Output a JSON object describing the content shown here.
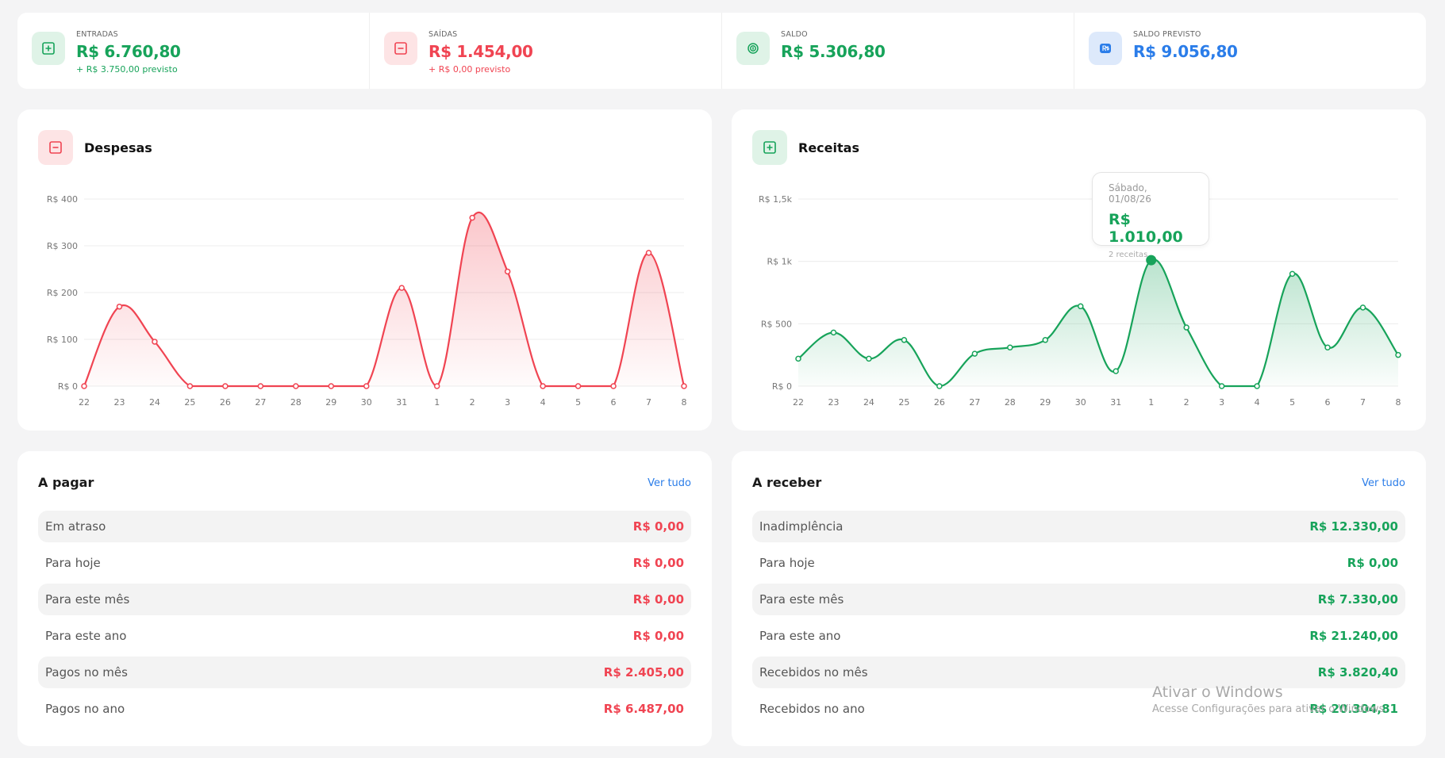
{
  "stats": [
    {
      "label": "ENTRADAS",
      "value": "R$ 6.760,80",
      "sub": "+ R$ 3.750,00 previsto",
      "icon": "plus-square-icon"
    },
    {
      "label": "SAÍDAS",
      "value": "R$ 1.454,00",
      "sub": "+ R$ 0,00 previsto",
      "icon": "minus-square-icon"
    },
    {
      "label": "SALDO",
      "value": "R$ 5.306,80",
      "sub": "",
      "icon": "coins-icon"
    },
    {
      "label": "SALDO PREVISTO",
      "value": "R$ 9.056,80",
      "sub": "",
      "icon": "currency-badge-icon"
    }
  ],
  "colors": {
    "green": "#17a35a",
    "red": "#f04452",
    "blue": "#2b7de9"
  },
  "despesas": {
    "title": "Despesas",
    "icon": "minus-square-icon"
  },
  "receitas": {
    "title": "Receitas",
    "icon": "plus-square-icon"
  },
  "tooltip": {
    "date": "Sábado, 01/08/26",
    "value": "R$ 1.010,00",
    "sub": "2 receitas"
  },
  "chart_data": [
    {
      "type": "area",
      "title": "Despesas",
      "categories": [
        "22",
        "23",
        "24",
        "25",
        "26",
        "27",
        "28",
        "29",
        "30",
        "31",
        "1",
        "2",
        "3",
        "4",
        "5",
        "6",
        "7",
        "8"
      ],
      "values": [
        0,
        170,
        95,
        0,
        0,
        0,
        0,
        0,
        0,
        210,
        0,
        360,
        245,
        0,
        0,
        0,
        285,
        0
      ],
      "yticks": [
        "R$ 0",
        "R$ 100",
        "R$ 200",
        "R$ 300",
        "R$ 400"
      ],
      "ylim": [
        0,
        400
      ],
      "color": "#f04452",
      "grid": true
    },
    {
      "type": "area",
      "title": "Receitas",
      "categories": [
        "22",
        "23",
        "24",
        "25",
        "26",
        "27",
        "28",
        "29",
        "30",
        "31",
        "1",
        "2",
        "3",
        "4",
        "5",
        "6",
        "7",
        "8"
      ],
      "values": [
        220,
        430,
        220,
        370,
        0,
        260,
        310,
        370,
        640,
        120,
        1010,
        470,
        0,
        0,
        900,
        310,
        630,
        250
      ],
      "yticks": [
        "R$ 0",
        "R$ 500",
        "R$ 1k",
        "R$ 1,5k"
      ],
      "ylim": [
        0,
        1500
      ],
      "color": "#17a35a",
      "grid": true
    }
  ],
  "pagar": {
    "title": "A pagar",
    "link": "Ver tudo",
    "rows": [
      {
        "label": "Em atraso",
        "value": "R$ 0,00"
      },
      {
        "label": "Para hoje",
        "value": "R$ 0,00"
      },
      {
        "label": "Para este mês",
        "value": "R$ 0,00"
      },
      {
        "label": "Para este ano",
        "value": "R$ 0,00"
      },
      {
        "label": "Pagos no mês",
        "value": "R$ 2.405,00"
      },
      {
        "label": "Pagos no ano",
        "value": "R$ 6.487,00"
      }
    ]
  },
  "receber": {
    "title": "A receber",
    "link": "Ver tudo",
    "rows": [
      {
        "label": "Inadimplência",
        "value": "R$ 12.330,00"
      },
      {
        "label": "Para hoje",
        "value": "R$ 0,00"
      },
      {
        "label": "Para este mês",
        "value": "R$ 7.330,00"
      },
      {
        "label": "Para este ano",
        "value": "R$ 21.240,00"
      },
      {
        "label": "Recebidos no mês",
        "value": "R$ 3.820,40"
      },
      {
        "label": "Recebidos no ano",
        "value": "R$ 20.304,81"
      }
    ]
  },
  "watermark": {
    "title": "Ativar o Windows",
    "sub": "Acesse Configurações para ativar o Windows."
  }
}
